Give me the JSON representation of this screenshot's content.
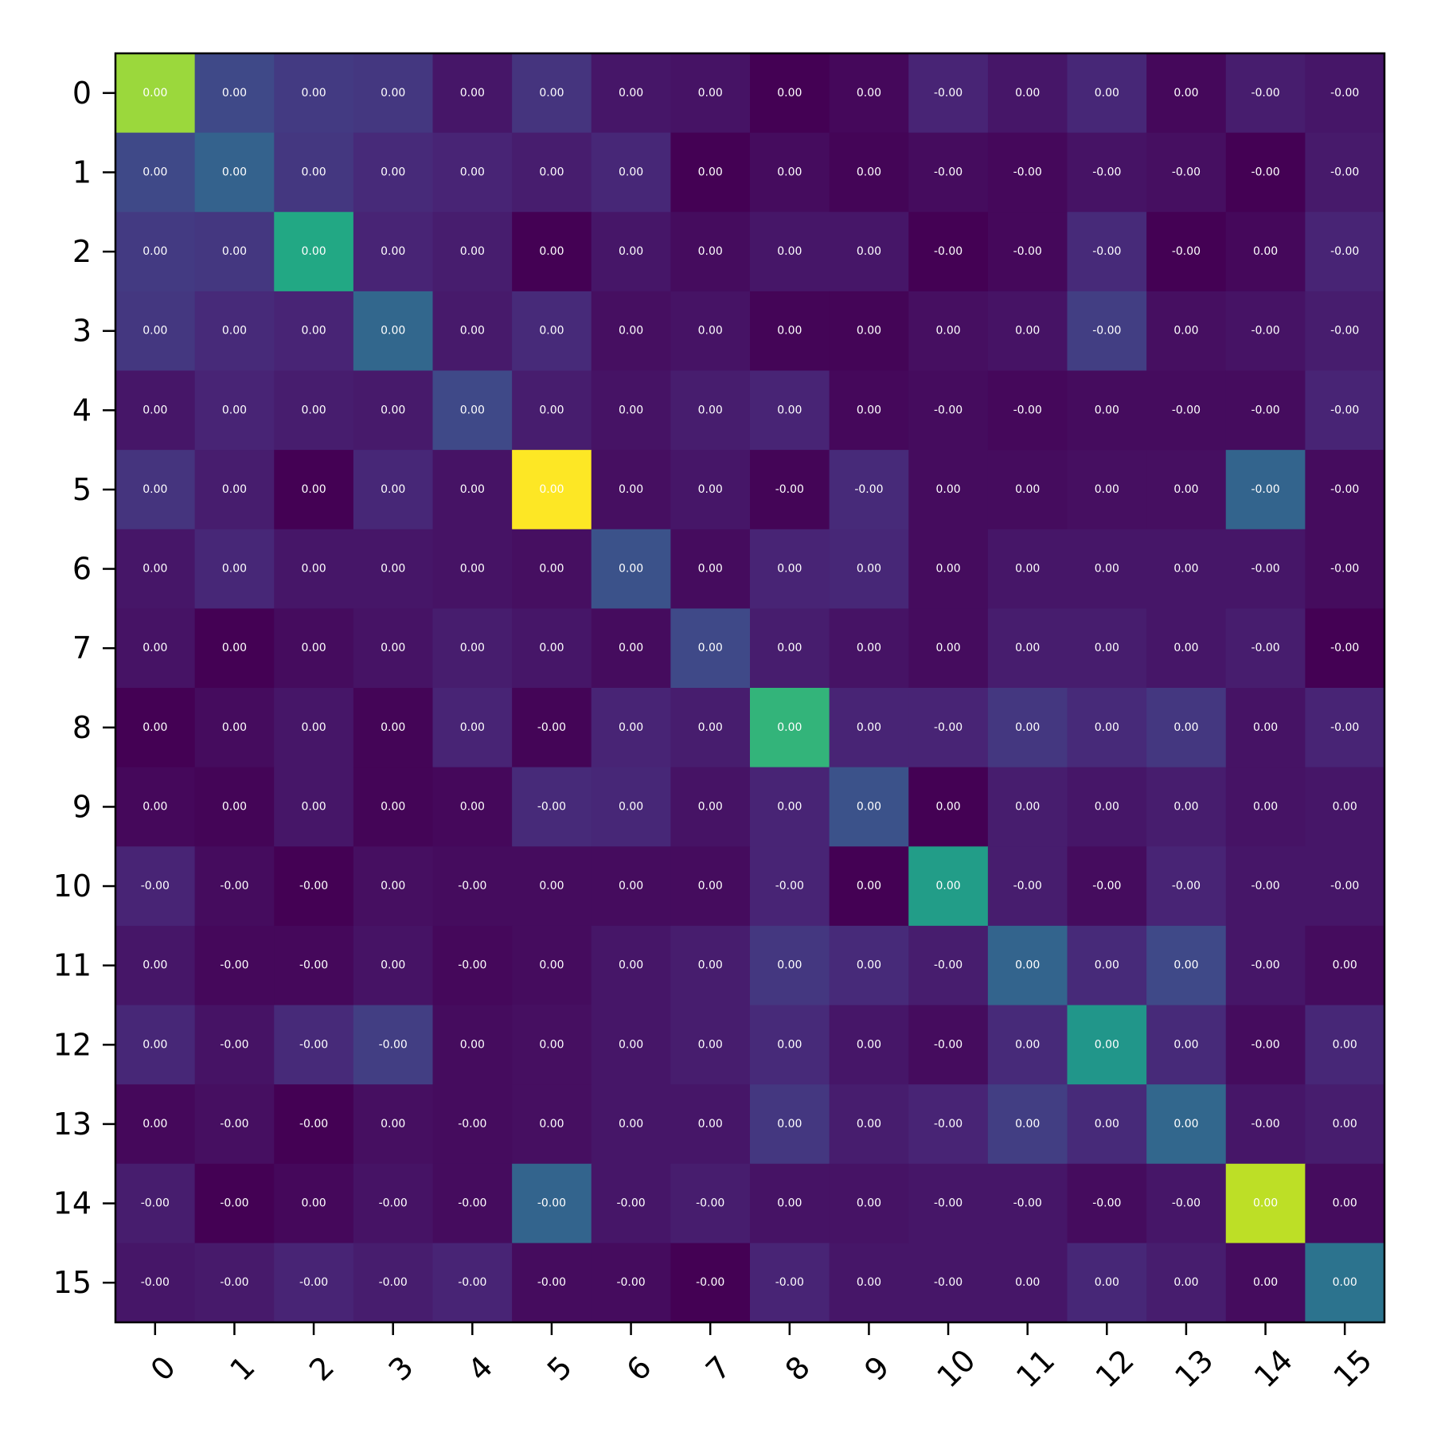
{
  "chart_data": {
    "type": "heatmap",
    "title": "",
    "xlabel": "",
    "ylabel": "",
    "colormap": "viridis",
    "x_tick_labels": [
      "0",
      "1",
      "2",
      "3",
      "4",
      "5",
      "6",
      "7",
      "8",
      "9",
      "10",
      "11",
      "12",
      "13",
      "14",
      "15"
    ],
    "y_tick_labels": [
      "0",
      "1",
      "2",
      "3",
      "4",
      "5",
      "6",
      "7",
      "8",
      "9",
      "10",
      "11",
      "12",
      "13",
      "14",
      "15"
    ],
    "intensity": [
      [
        0.85,
        0.22,
        0.17,
        0.16,
        0.06,
        0.15,
        0.06,
        0.05,
        0.0,
        0.02,
        0.1,
        0.06,
        0.11,
        0.02,
        0.08,
        0.06
      ],
      [
        0.22,
        0.31,
        0.16,
        0.12,
        0.1,
        0.08,
        0.11,
        0.0,
        0.03,
        0.01,
        0.03,
        0.02,
        0.05,
        0.04,
        0.0,
        0.07
      ],
      [
        0.17,
        0.16,
        0.6,
        0.1,
        0.08,
        0.0,
        0.06,
        0.03,
        0.06,
        0.06,
        0.0,
        0.02,
        0.12,
        0.0,
        0.02,
        0.1
      ],
      [
        0.16,
        0.12,
        0.1,
        0.33,
        0.07,
        0.12,
        0.04,
        0.05,
        0.01,
        0.01,
        0.04,
        0.05,
        0.18,
        0.04,
        0.05,
        0.08
      ],
      [
        0.06,
        0.1,
        0.08,
        0.07,
        0.22,
        0.08,
        0.05,
        0.08,
        0.1,
        0.02,
        0.03,
        0.02,
        0.03,
        0.03,
        0.03,
        0.1
      ],
      [
        0.15,
        0.08,
        0.0,
        0.11,
        0.05,
        1.0,
        0.04,
        0.06,
        0.01,
        0.12,
        0.03,
        0.03,
        0.04,
        0.04,
        0.32,
        0.03
      ],
      [
        0.06,
        0.11,
        0.06,
        0.06,
        0.05,
        0.04,
        0.25,
        0.03,
        0.1,
        0.11,
        0.03,
        0.06,
        0.06,
        0.06,
        0.06,
        0.03
      ],
      [
        0.05,
        0.0,
        0.03,
        0.05,
        0.08,
        0.06,
        0.03,
        0.22,
        0.08,
        0.05,
        0.03,
        0.08,
        0.08,
        0.06,
        0.08,
        0.0
      ],
      [
        0.0,
        0.03,
        0.06,
        0.01,
        0.1,
        0.01,
        0.1,
        0.08,
        0.65,
        0.1,
        0.1,
        0.16,
        0.12,
        0.16,
        0.05,
        0.1
      ],
      [
        0.02,
        0.01,
        0.06,
        0.01,
        0.02,
        0.12,
        0.11,
        0.05,
        0.1,
        0.25,
        0.0,
        0.08,
        0.06,
        0.08,
        0.05,
        0.06
      ],
      [
        0.1,
        0.03,
        0.0,
        0.04,
        0.03,
        0.03,
        0.03,
        0.03,
        0.1,
        0.0,
        0.55,
        0.08,
        0.03,
        0.1,
        0.06,
        0.06
      ],
      [
        0.06,
        0.02,
        0.02,
        0.05,
        0.02,
        0.03,
        0.06,
        0.08,
        0.16,
        0.12,
        0.08,
        0.32,
        0.12,
        0.22,
        0.06,
        0.03
      ],
      [
        0.11,
        0.05,
        0.12,
        0.18,
        0.03,
        0.04,
        0.06,
        0.08,
        0.12,
        0.06,
        0.03,
        0.12,
        0.52,
        0.12,
        0.03,
        0.11
      ],
      [
        0.02,
        0.04,
        0.0,
        0.04,
        0.03,
        0.04,
        0.06,
        0.06,
        0.16,
        0.08,
        0.1,
        0.18,
        0.12,
        0.33,
        0.06,
        0.08
      ],
      [
        0.08,
        0.0,
        0.02,
        0.05,
        0.03,
        0.32,
        0.06,
        0.08,
        0.05,
        0.05,
        0.06,
        0.06,
        0.03,
        0.06,
        0.9,
        0.03
      ],
      [
        0.06,
        0.07,
        0.1,
        0.08,
        0.1,
        0.03,
        0.03,
        0.0,
        0.1,
        0.06,
        0.06,
        0.06,
        0.11,
        0.08,
        0.03,
        0.38
      ]
    ],
    "cell_labels": [
      [
        "0.00",
        "0.00",
        "0.00",
        "0.00",
        "0.00",
        "0.00",
        "0.00",
        "0.00",
        "0.00",
        "0.00",
        "-0.00",
        "0.00",
        "0.00",
        "0.00",
        "-0.00",
        "-0.00"
      ],
      [
        "0.00",
        "0.00",
        "0.00",
        "0.00",
        "0.00",
        "0.00",
        "0.00",
        "0.00",
        "0.00",
        "0.00",
        "-0.00",
        "-0.00",
        "-0.00",
        "-0.00",
        "-0.00",
        "-0.00"
      ],
      [
        "0.00",
        "0.00",
        "0.00",
        "0.00",
        "0.00",
        "0.00",
        "0.00",
        "0.00",
        "0.00",
        "0.00",
        "-0.00",
        "-0.00",
        "-0.00",
        "-0.00",
        "0.00",
        "-0.00"
      ],
      [
        "0.00",
        "0.00",
        "0.00",
        "0.00",
        "0.00",
        "0.00",
        "0.00",
        "0.00",
        "0.00",
        "0.00",
        "0.00",
        "0.00",
        "-0.00",
        "0.00",
        "-0.00",
        "-0.00"
      ],
      [
        "0.00",
        "0.00",
        "0.00",
        "0.00",
        "0.00",
        "0.00",
        "0.00",
        "0.00",
        "0.00",
        "0.00",
        "-0.00",
        "-0.00",
        "0.00",
        "-0.00",
        "-0.00",
        "-0.00"
      ],
      [
        "0.00",
        "0.00",
        "0.00",
        "0.00",
        "0.00",
        "0.00",
        "0.00",
        "0.00",
        "-0.00",
        "-0.00",
        "0.00",
        "0.00",
        "0.00",
        "0.00",
        "-0.00",
        "-0.00"
      ],
      [
        "0.00",
        "0.00",
        "0.00",
        "0.00",
        "0.00",
        "0.00",
        "0.00",
        "0.00",
        "0.00",
        "0.00",
        "0.00",
        "0.00",
        "0.00",
        "0.00",
        "-0.00",
        "-0.00"
      ],
      [
        "0.00",
        "0.00",
        "0.00",
        "0.00",
        "0.00",
        "0.00",
        "0.00",
        "0.00",
        "0.00",
        "0.00",
        "0.00",
        "0.00",
        "0.00",
        "0.00",
        "-0.00",
        "-0.00"
      ],
      [
        "0.00",
        "0.00",
        "0.00",
        "0.00",
        "0.00",
        "-0.00",
        "0.00",
        "0.00",
        "0.00",
        "0.00",
        "-0.00",
        "0.00",
        "0.00",
        "0.00",
        "0.00",
        "-0.00"
      ],
      [
        "0.00",
        "0.00",
        "0.00",
        "0.00",
        "0.00",
        "-0.00",
        "0.00",
        "0.00",
        "0.00",
        "0.00",
        "0.00",
        "0.00",
        "0.00",
        "0.00",
        "0.00",
        "0.00"
      ],
      [
        "-0.00",
        "-0.00",
        "-0.00",
        "0.00",
        "-0.00",
        "0.00",
        "0.00",
        "0.00",
        "-0.00",
        "0.00",
        "0.00",
        "-0.00",
        "-0.00",
        "-0.00",
        "-0.00",
        "-0.00"
      ],
      [
        "0.00",
        "-0.00",
        "-0.00",
        "0.00",
        "-0.00",
        "0.00",
        "0.00",
        "0.00",
        "0.00",
        "0.00",
        "-0.00",
        "0.00",
        "0.00",
        "0.00",
        "-0.00",
        "0.00"
      ],
      [
        "0.00",
        "-0.00",
        "-0.00",
        "-0.00",
        "0.00",
        "0.00",
        "0.00",
        "0.00",
        "0.00",
        "0.00",
        "-0.00",
        "0.00",
        "0.00",
        "0.00",
        "-0.00",
        "0.00"
      ],
      [
        "0.00",
        "-0.00",
        "-0.00",
        "0.00",
        "-0.00",
        "0.00",
        "0.00",
        "0.00",
        "0.00",
        "0.00",
        "-0.00",
        "0.00",
        "0.00",
        "0.00",
        "-0.00",
        "0.00"
      ],
      [
        "-0.00",
        "-0.00",
        "0.00",
        "-0.00",
        "-0.00",
        "-0.00",
        "-0.00",
        "-0.00",
        "0.00",
        "0.00",
        "-0.00",
        "-0.00",
        "-0.00",
        "-0.00",
        "0.00",
        "0.00"
      ],
      [
        "-0.00",
        "-0.00",
        "-0.00",
        "-0.00",
        "-0.00",
        "-0.00",
        "-0.00",
        "-0.00",
        "-0.00",
        "0.00",
        "-0.00",
        "0.00",
        "0.00",
        "0.00",
        "0.00",
        "0.00"
      ]
    ],
    "grid": false,
    "legend": "none"
  }
}
